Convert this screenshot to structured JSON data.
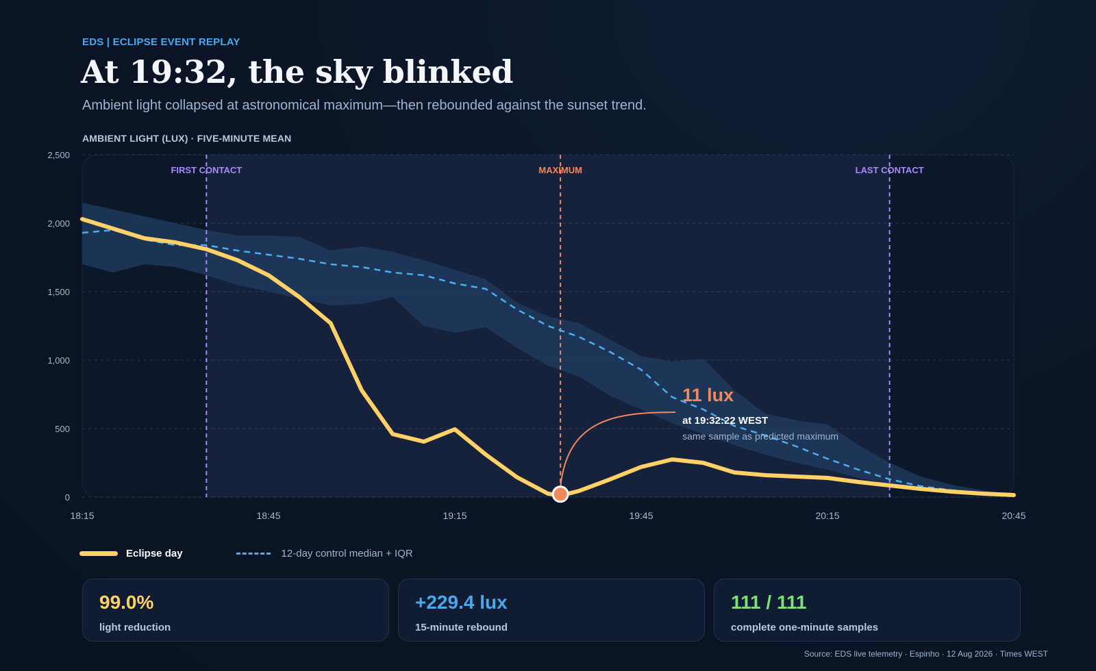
{
  "kicker": "EDS | ECLIPSE EVENT REPLAY",
  "title": "At 19:32, the sky blinked",
  "subtitle": "Ambient light collapsed at astronomical maximum—then rebounded against the sunset trend.",
  "source": "Source: EDS live telemetry · Espinho · 12 Aug 2026 · Times WEST",
  "legend": {
    "eclipse": "Eclipse day",
    "control": "12-day control median + IQR"
  },
  "stats": [
    {
      "value": "99.0%",
      "label": "light reduction",
      "color": "#ffd166"
    },
    {
      "value": "+229.4 lux",
      "label": "15-minute rebound",
      "color": "#4aa8ee"
    },
    {
      "value": "111 / 111",
      "label": "complete one-minute samples",
      "color": "#7ee07a"
    }
  ],
  "colors": {
    "eclipse": "#ffd166",
    "control": "#4aaef0",
    "iqr": "#1f3a5c",
    "contact": "#a78bfa",
    "maximum": "#f08a5d"
  },
  "chart_data": {
    "type": "line",
    "ylabel": "AMBIENT LIGHT (LUX) · FIVE-MINUTE MEAN",
    "xlabel": "",
    "x_ticks": [
      "18:15",
      "18:45",
      "19:15",
      "19:45",
      "20:15",
      "20:45"
    ],
    "x_range_minutes": [
      "18:15",
      "20:45"
    ],
    "y_ticks": [
      "0",
      "500",
      "1,000",
      "1,500",
      "2,000",
      "2,500"
    ],
    "ylim": [
      0,
      2500
    ],
    "grid": true,
    "series": [
      {
        "name": "Eclipse day",
        "style": "solid",
        "points": [
          [
            "18:15",
            2030
          ],
          [
            "18:20",
            1960
          ],
          [
            "18:25",
            1890
          ],
          [
            "18:30",
            1860
          ],
          [
            "18:35",
            1810
          ],
          [
            "18:40",
            1730
          ],
          [
            "18:45",
            1620
          ],
          [
            "18:50",
            1460
          ],
          [
            "18:55",
            1270
          ],
          [
            "19:00",
            780
          ],
          [
            "19:05",
            460
          ],
          [
            "19:10",
            405
          ],
          [
            "19:15",
            495
          ],
          [
            "19:20",
            310
          ],
          [
            "19:25",
            145
          ],
          [
            "19:30",
            25
          ],
          [
            "19:32",
            11
          ],
          [
            "19:35",
            45
          ],
          [
            "19:40",
            130
          ],
          [
            "19:45",
            220
          ],
          [
            "19:50",
            275
          ],
          [
            "19:55",
            250
          ],
          [
            "20:00",
            180
          ],
          [
            "20:05",
            160
          ],
          [
            "20:10",
            150
          ],
          [
            "20:15",
            140
          ],
          [
            "20:20",
            110
          ],
          [
            "20:25",
            85
          ],
          [
            "20:30",
            60
          ],
          [
            "20:35",
            40
          ],
          [
            "20:40",
            25
          ],
          [
            "20:45",
            15
          ]
        ]
      },
      {
        "name": "12-day control median + IQR",
        "style": "dashed",
        "points": [
          [
            "18:15",
            1930
          ],
          [
            "18:20",
            1950
          ],
          [
            "18:25",
            1880
          ],
          [
            "18:30",
            1840
          ],
          [
            "18:35",
            1840
          ],
          [
            "18:40",
            1800
          ],
          [
            "18:45",
            1770
          ],
          [
            "18:50",
            1740
          ],
          [
            "18:55",
            1700
          ],
          [
            "19:00",
            1680
          ],
          [
            "19:05",
            1640
          ],
          [
            "19:10",
            1620
          ],
          [
            "19:15",
            1560
          ],
          [
            "19:20",
            1520
          ],
          [
            "19:25",
            1370
          ],
          [
            "19:30",
            1250
          ],
          [
            "19:35",
            1170
          ],
          [
            "19:40",
            1060
          ],
          [
            "19:45",
            930
          ],
          [
            "19:50",
            730
          ],
          [
            "19:55",
            640
          ],
          [
            "20:00",
            520
          ],
          [
            "20:05",
            450
          ],
          [
            "20:10",
            370
          ],
          [
            "20:15",
            280
          ],
          [
            "20:20",
            200
          ],
          [
            "20:25",
            130
          ],
          [
            "20:30",
            80
          ],
          [
            "20:35",
            50
          ],
          [
            "20:40",
            30
          ],
          [
            "20:45",
            15
          ]
        ],
        "iqr_upper": [
          2150,
          2100,
          2050,
          2000,
          1950,
          1910,
          1910,
          1900,
          1800,
          1830,
          1790,
          1730,
          1660,
          1590,
          1420,
          1320,
          1270,
          1150,
          1030,
          990,
          1010,
          780,
          610,
          560,
          530,
          380,
          250,
          150,
          90,
          50,
          20
        ],
        "iqr_lower": [
          1700,
          1640,
          1700,
          1680,
          1620,
          1550,
          1500,
          1450,
          1400,
          1410,
          1460,
          1250,
          1200,
          1240,
          1090,
          960,
          880,
          740,
          640,
          540,
          460,
          380,
          310,
          250,
          200,
          140,
          90,
          55,
          30,
          15,
          8
        ]
      }
    ],
    "markers": [
      {
        "label": "FIRST CONTACT",
        "x": "18:35",
        "color": "#a78bfa"
      },
      {
        "label": "MAXIMUM",
        "x": "19:32",
        "color": "#f08a5d"
      },
      {
        "label": "LAST CONTACT",
        "x": "20:25",
        "color": "#a78bfa"
      }
    ],
    "annotation": {
      "value": "11 lux",
      "time": "at 19:32:22 WEST",
      "note": "same sample as predicted maximum",
      "x": "19:32",
      "y": 11
    }
  }
}
